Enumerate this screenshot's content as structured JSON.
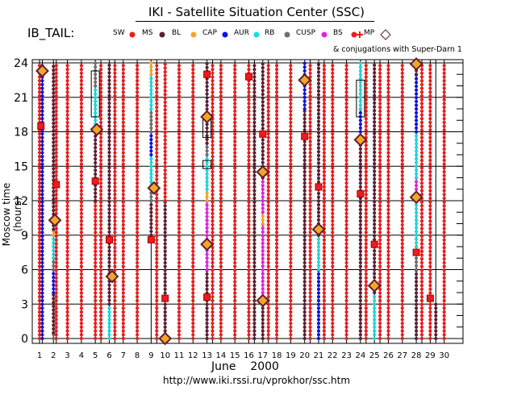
{
  "chart_data": {
    "type": "table",
    "title": "IKI - Satellite Situation Center (SSC)",
    "dataset": "IB_TAIL:",
    "xlabel_month": "June",
    "xlabel_year": "2000",
    "ylabel": "Moscow time (hours)",
    "url": "http://www.iki.rssi.ru/vprokhor/ssc.htm",
    "conjugation_note": "& conjugations with Super-Darn 1",
    "y_ticks": [
      "0",
      "3",
      "6",
      "9",
      "12",
      "15",
      "18",
      "21",
      "24"
    ],
    "ylim": [
      0,
      24
    ],
    "x_ticks": [
      "1",
      "2",
      "3",
      "4",
      "5",
      "6",
      "7",
      "8",
      "9",
      "10",
      "11",
      "12",
      "13",
      "14",
      "15",
      "16",
      "17",
      "18",
      "19",
      "20",
      "21",
      "22",
      "23",
      "24",
      "25",
      "26",
      "27",
      "28",
      "29",
      "30"
    ],
    "legend": [
      {
        "code": "SW",
        "label": "SW",
        "color": "#ee1c1c"
      },
      {
        "code": "MS",
        "label": "MS",
        "color": "#5c1f33"
      },
      {
        "code": "BL",
        "label": "BL",
        "color": "#f5a623"
      },
      {
        "code": "CAP",
        "label": "CAP",
        "color": "#0a14e6"
      },
      {
        "code": "AUR",
        "label": "AUR",
        "color": "#16dcdc"
      },
      {
        "code": "RB",
        "label": "RB",
        "color": "#6e6e6e"
      },
      {
        "code": "CUSP",
        "label": "CUSP",
        "color": "#e81ee8"
      },
      {
        "code": "BS",
        "label": "BS",
        "color": "#e81e1e"
      },
      {
        "code": "MP",
        "label": "MP",
        "color": "#5c1f33"
      }
    ],
    "columns": [
      {
        "day": 1,
        "segments": [
          [
            "SW",
            0,
            24
          ]
        ]
      },
      {
        "day": 1.2,
        "segments": [
          [
            "CAP",
            0,
            24
          ]
        ]
      },
      {
        "day": 2,
        "segments": [
          [
            "RB",
            0,
            0.5
          ],
          [
            "MS",
            0.5,
            4
          ],
          [
            "CAP",
            4,
            6
          ],
          [
            "RB",
            6,
            7
          ],
          [
            "AUR",
            7,
            9
          ],
          [
            "BL",
            9,
            9.5
          ],
          [
            "MS",
            9.5,
            24
          ]
        ]
      },
      {
        "day": 2.2,
        "segments": [
          [
            "SW",
            0,
            24
          ]
        ]
      },
      {
        "day": 3,
        "segments": [
          [
            "SW",
            0,
            24
          ]
        ]
      },
      {
        "day": 4,
        "segments": [
          [
            "SW",
            0,
            24
          ]
        ]
      },
      {
        "day": 5,
        "segments": [
          [
            "SW",
            0,
            12
          ],
          [
            "MS",
            12,
            18
          ],
          [
            "AUR",
            18,
            22
          ],
          [
            "RB",
            22,
            24
          ]
        ]
      },
      {
        "day": 5.4,
        "segments": [
          [
            "SW",
            0,
            24
          ]
        ]
      },
      {
        "day": 6,
        "segments": [
          [
            "AUR",
            0,
            3
          ],
          [
            "MS",
            3,
            24
          ]
        ]
      },
      {
        "day": 6.4,
        "segments": [
          [
            "SW",
            0,
            24
          ]
        ]
      },
      {
        "day": 7,
        "segments": [
          [
            "SW",
            0,
            24
          ]
        ]
      },
      {
        "day": 8,
        "segments": [
          [
            "SW",
            0,
            24
          ]
        ]
      },
      {
        "day": 9,
        "segments": [
          [
            "MS",
            9,
            12
          ],
          [
            "RB",
            12,
            13
          ],
          [
            "AUR",
            13,
            16
          ],
          [
            "CAP",
            16,
            18
          ],
          [
            "RB",
            18,
            20
          ],
          [
            "AUR",
            20,
            23
          ],
          [
            "BL",
            23,
            24
          ]
        ]
      },
      {
        "day": 9.4,
        "segments": [
          [
            "SW",
            0,
            24
          ]
        ]
      },
      {
        "day": 10,
        "segments": [
          [
            "MS",
            0,
            12
          ],
          [
            "SW",
            12,
            24
          ]
        ]
      },
      {
        "day": 11,
        "segments": [
          [
            "SW",
            0,
            24
          ]
        ]
      },
      {
        "day": 12,
        "segments": [
          [
            "SW",
            0,
            24
          ]
        ]
      },
      {
        "day": 13,
        "segments": [
          [
            "MS",
            0,
            6
          ],
          [
            "CUSP",
            6,
            12
          ],
          [
            "BL",
            12,
            13
          ],
          [
            "AUR",
            13,
            16
          ],
          [
            "RB",
            16,
            17
          ],
          [
            "MS",
            17,
            24
          ]
        ]
      },
      {
        "day": 13.4,
        "segments": [
          [
            "SW",
            0,
            24
          ]
        ]
      },
      {
        "day": 14,
        "segments": [
          [
            "SW",
            0,
            24
          ]
        ]
      },
      {
        "day": 15,
        "segments": [
          [
            "SW",
            0,
            24
          ]
        ]
      },
      {
        "day": 16,
        "segments": [
          [
            "SW",
            0,
            24
          ]
        ]
      },
      {
        "day": 16.4,
        "segments": [
          [
            "MS",
            0,
            24
          ]
        ]
      },
      {
        "day": 17,
        "segments": [
          [
            "MS",
            0,
            3
          ],
          [
            "CUSP",
            3,
            10
          ],
          [
            "BL",
            10,
            11
          ],
          [
            "CUSP",
            11,
            14
          ],
          [
            "MS",
            14,
            24
          ]
        ]
      },
      {
        "day": 17.4,
        "segments": [
          [
            "SW",
            0,
            24
          ]
        ]
      },
      {
        "day": 18,
        "segments": [
          [
            "SW",
            0,
            24
          ]
        ]
      },
      {
        "day": 19,
        "segments": [
          [
            "SW",
            0,
            24
          ]
        ]
      },
      {
        "day": 20,
        "segments": [
          [
            "MS",
            0,
            20
          ],
          [
            "CAP",
            20,
            24
          ]
        ]
      },
      {
        "day": 20.4,
        "segments": [
          [
            "SW",
            0,
            24
          ]
        ]
      },
      {
        "day": 21,
        "segments": [
          [
            "CAP",
            0,
            6
          ],
          [
            "AUR",
            6,
            9
          ],
          [
            "MS",
            9,
            24
          ]
        ]
      },
      {
        "day": 21.4,
        "segments": [
          [
            "SW",
            0,
            24
          ]
        ]
      },
      {
        "day": 22,
        "segments": [
          [
            "SW",
            0,
            24
          ]
        ]
      },
      {
        "day": 23,
        "segments": [
          [
            "SW",
            0,
            24
          ]
        ]
      },
      {
        "day": 24,
        "segments": [
          [
            "MS",
            0,
            17
          ],
          [
            "RB",
            17,
            18
          ],
          [
            "CAP",
            18,
            20
          ],
          [
            "AUR",
            20,
            24
          ]
        ]
      },
      {
        "day": 24.4,
        "segments": [
          [
            "SW",
            0,
            24
          ]
        ]
      },
      {
        "day": 25,
        "segments": [
          [
            "AUR",
            0,
            4
          ],
          [
            "MS",
            4,
            24
          ]
        ]
      },
      {
        "day": 25.4,
        "segments": [
          [
            "SW",
            0,
            24
          ]
        ]
      },
      {
        "day": 26,
        "segments": [
          [
            "SW",
            0,
            24
          ]
        ]
      },
      {
        "day": 27,
        "segments": [
          [
            "SW",
            0,
            24
          ]
        ]
      },
      {
        "day": 28,
        "segments": [
          [
            "MS",
            0,
            6
          ],
          [
            "RB",
            6,
            8
          ],
          [
            "AUR",
            8,
            12
          ],
          [
            "CUSP",
            12,
            14
          ],
          [
            "AUR",
            14,
            18
          ],
          [
            "CAP",
            18,
            23
          ],
          [
            "MS",
            23,
            24
          ]
        ]
      },
      {
        "day": 28.4,
        "segments": [
          [
            "SW",
            0,
            24
          ]
        ]
      },
      {
        "day": 29,
        "segments": [
          [
            "SW",
            0,
            24
          ]
        ]
      },
      {
        "day": 29.4,
        "segments": [
          [
            "MS",
            0,
            3
          ]
        ]
      },
      {
        "day": 30,
        "segments": [
          [
            "SW",
            0,
            24
          ]
        ]
      }
    ],
    "crossings": [
      {
        "type": "MP",
        "day": 1.2,
        "hour": 23.3
      },
      {
        "type": "BS",
        "day": 1.1,
        "hour": 18.5
      },
      {
        "type": "MP",
        "day": 2.1,
        "hour": 10.3
      },
      {
        "type": "BS",
        "day": 2.2,
        "hour": 13.4
      },
      {
        "type": "BS",
        "day": 5,
        "hour": 13.7
      },
      {
        "type": "MP",
        "day": 5.1,
        "hour": 18.2
      },
      {
        "type": "MP",
        "day": 6.2,
        "hour": 5.4
      },
      {
        "type": "BS",
        "day": 6,
        "hour": 8.6
      },
      {
        "type": "BS",
        "day": 9,
        "hour": 8.6
      },
      {
        "type": "MP",
        "day": 9.2,
        "hour": 13.1
      },
      {
        "type": "MP",
        "day": 10,
        "hour": 0
      },
      {
        "type": "BS",
        "day": 10,
        "hour": 3.5
      },
      {
        "type": "BS",
        "day": 13,
        "hour": 3.6
      },
      {
        "type": "MP",
        "day": 13,
        "hour": 8.2
      },
      {
        "type": "MP",
        "day": 13,
        "hour": 19.3
      },
      {
        "type": "BS",
        "day": 13,
        "hour": 23
      },
      {
        "type": "BS",
        "day": 16,
        "hour": 22.8
      },
      {
        "type": "MP",
        "day": 17,
        "hour": 3.3
      },
      {
        "type": "MP",
        "day": 17,
        "hour": 14.5
      },
      {
        "type": "BS",
        "day": 17,
        "hour": 17.8
      },
      {
        "type": "BS",
        "day": 20,
        "hour": 17.6
      },
      {
        "type": "MP",
        "day": 20,
        "hour": 22.5
      },
      {
        "type": "MP",
        "day": 21,
        "hour": 9.5
      },
      {
        "type": "BS",
        "day": 21,
        "hour": 13.2
      },
      {
        "type": "BS",
        "day": 24,
        "hour": 12.6
      },
      {
        "type": "MP",
        "day": 24,
        "hour": 17.3
      },
      {
        "type": "MP",
        "day": 25,
        "hour": 4.6
      },
      {
        "type": "BS",
        "day": 25,
        "hour": 8.2
      },
      {
        "type": "BS",
        "day": 28,
        "hour": 7.5
      },
      {
        "type": "MP",
        "day": 28,
        "hour": 12.3
      },
      {
        "type": "MP",
        "day": 28,
        "hour": 23.9
      },
      {
        "type": "BS",
        "day": 29,
        "hour": 3.5
      }
    ],
    "conjugations": [
      {
        "day": 5,
        "from": 19.3,
        "to": 23.3
      },
      {
        "day": 13,
        "from": 17.5,
        "to": 19.5
      },
      {
        "day": 13,
        "from": 14.8,
        "to": 15.5
      },
      {
        "day": 24,
        "from": 19.3,
        "to": 22.5
      }
    ]
  }
}
